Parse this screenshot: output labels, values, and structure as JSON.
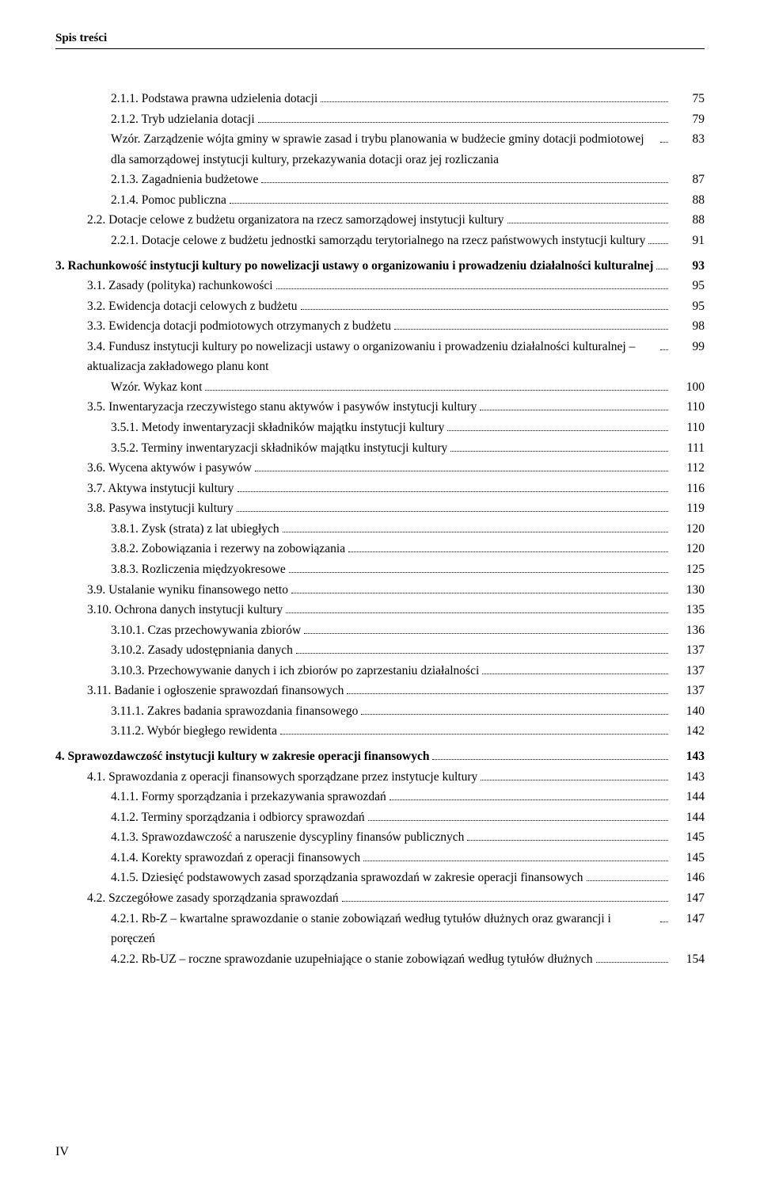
{
  "header": "Spis treści",
  "footer": "IV",
  "entries": [
    {
      "indent": 2,
      "text": "2.1.1. Podstawa prawna udzielenia dotacji",
      "page": "75",
      "bold": false
    },
    {
      "indent": 2,
      "text": "2.1.2. Tryb udzielania dotacji",
      "page": "79",
      "bold": false
    },
    {
      "indent": 2,
      "text": "Wzór. Zarządzenie wójta gminy w sprawie zasad i trybu planowania w budżecie gminy dotacji podmiotowej dla samorządowej instytucji kultury, przekazywania dotacji oraz jej rozliczania",
      "page": "83",
      "bold": false,
      "multi": true
    },
    {
      "indent": 2,
      "text": "2.1.3. Zagadnienia budżetowe",
      "page": "87",
      "bold": false
    },
    {
      "indent": 2,
      "text": "2.1.4. Pomoc publiczna",
      "page": "88",
      "bold": false
    },
    {
      "indent": 1,
      "text": "2.2. Dotacje celowe z budżetu organizatora na rzecz samorządowej instytucji kultury",
      "page": "88",
      "bold": false
    },
    {
      "indent": 2,
      "text": "2.2.1. Dotacje celowe z budżetu jednostki samorządu terytorialnego na rzecz państwowych instytucji kultury",
      "page": "91",
      "bold": false,
      "multi": true
    },
    {
      "indent": 0,
      "text": "3. Rachunkowość instytucji kultury po nowelizacji ustawy o organizowaniu i prowadzeniu działalności kulturalnej",
      "page": "93",
      "bold": true,
      "multi": true,
      "gap": true
    },
    {
      "indent": 1,
      "text": "3.1. Zasady (polityka) rachunkowości",
      "page": "95",
      "bold": false
    },
    {
      "indent": 1,
      "text": "3.2. Ewidencja dotacji celowych z budżetu",
      "page": "95",
      "bold": false
    },
    {
      "indent": 1,
      "text": "3.3. Ewidencja dotacji podmiotowych otrzymanych z budżetu",
      "page": "98",
      "bold": false
    },
    {
      "indent": 1,
      "text": "3.4. Fundusz instytucji kultury po nowelizacji ustawy o organizowaniu i prowadzeniu działalności kulturalnej – aktualizacja zakładowego planu kont",
      "page": "99",
      "bold": false,
      "multi": true
    },
    {
      "indent": 2,
      "text": "Wzór. Wykaz kont",
      "page": "100",
      "bold": false
    },
    {
      "indent": 1,
      "text": "3.5. Inwentaryzacja rzeczywistego stanu aktywów i pasywów instytucji kultury",
      "page": "110",
      "bold": false
    },
    {
      "indent": 2,
      "text": "3.5.1. Metody inwentaryzacji składników majątku instytucji kultury",
      "page": "110",
      "bold": false
    },
    {
      "indent": 2,
      "text": "3.5.2. Terminy inwentaryzacji składników majątku instytucji kultury",
      "page": "111",
      "bold": false
    },
    {
      "indent": 1,
      "text": "3.6. Wycena aktywów i pasywów",
      "page": "112",
      "bold": false
    },
    {
      "indent": 1,
      "text": "3.7. Aktywa instytucji kultury",
      "page": "116",
      "bold": false
    },
    {
      "indent": 1,
      "text": "3.8. Pasywa instytucji kultury",
      "page": "119",
      "bold": false
    },
    {
      "indent": 2,
      "text": "3.8.1. Zysk (strata) z lat ubiegłych",
      "page": "120",
      "bold": false
    },
    {
      "indent": 2,
      "text": "3.8.2. Zobowiązania i rezerwy na zobowiązania",
      "page": "120",
      "bold": false
    },
    {
      "indent": 2,
      "text": "3.8.3. Rozliczenia międzyokresowe",
      "page": "125",
      "bold": false
    },
    {
      "indent": 1,
      "text": "3.9. Ustalanie wyniku finansowego netto",
      "page": "130",
      "bold": false
    },
    {
      "indent": 1,
      "text": "3.10. Ochrona danych instytucji kultury",
      "page": "135",
      "bold": false
    },
    {
      "indent": 2,
      "text": "3.10.1. Czas przechowywania zbiorów",
      "page": "136",
      "bold": false
    },
    {
      "indent": 2,
      "text": "3.10.2. Zasady udostępniania danych",
      "page": "137",
      "bold": false
    },
    {
      "indent": 2,
      "text": "3.10.3. Przechowywanie danych i ich zbiorów po zaprzestaniu działalności",
      "page": "137",
      "bold": false
    },
    {
      "indent": 1,
      "text": "3.11. Badanie i ogłoszenie sprawozdań finansowych",
      "page": "137",
      "bold": false
    },
    {
      "indent": 2,
      "text": "3.11.1. Zakres badania sprawozdania finansowego",
      "page": "140",
      "bold": false
    },
    {
      "indent": 2,
      "text": "3.11.2. Wybór biegłego rewidenta",
      "page": "142",
      "bold": false
    },
    {
      "indent": 0,
      "text": "4. Sprawozdawczość instytucji kultury w zakresie operacji finansowych",
      "page": "143",
      "bold": true,
      "gap": true
    },
    {
      "indent": 1,
      "text": "4.1. Sprawozdania z operacji finansowych sporządzane przez instytucje kultury",
      "page": "143",
      "bold": false
    },
    {
      "indent": 2,
      "text": "4.1.1. Formy sporządzania i przekazywania sprawozdań",
      "page": "144",
      "bold": false
    },
    {
      "indent": 2,
      "text": "4.1.2. Terminy sporządzania i odbiorcy sprawozdań",
      "page": "144",
      "bold": false
    },
    {
      "indent": 2,
      "text": "4.1.3. Sprawozdawczość a naruszenie dyscypliny finansów publicznych",
      "page": "145",
      "bold": false
    },
    {
      "indent": 2,
      "text": "4.1.4. Korekty sprawozdań z operacji finansowych",
      "page": "145",
      "bold": false
    },
    {
      "indent": 2,
      "text": "4.1.5. Dziesięć podstawowych zasad sporządzania sprawozdań w zakresie operacji finansowych",
      "page": "146",
      "bold": false,
      "multi": true
    },
    {
      "indent": 1,
      "text": "4.2. Szczegółowe zasady sporządzania sprawozdań",
      "page": "147",
      "bold": false
    },
    {
      "indent": 2,
      "text": "4.2.1. Rb-Z – kwartalne sprawozdanie o stanie zobowiązań według tytułów dłużnych oraz gwarancji i poręczeń",
      "page": "147",
      "bold": false,
      "multi": true
    },
    {
      "indent": 2,
      "text": "4.2.2. Rb-UZ – roczne sprawozdanie uzupełniające o stanie zobowiązań według tytułów dłużnych",
      "page": "154",
      "bold": false,
      "multi": true
    }
  ]
}
